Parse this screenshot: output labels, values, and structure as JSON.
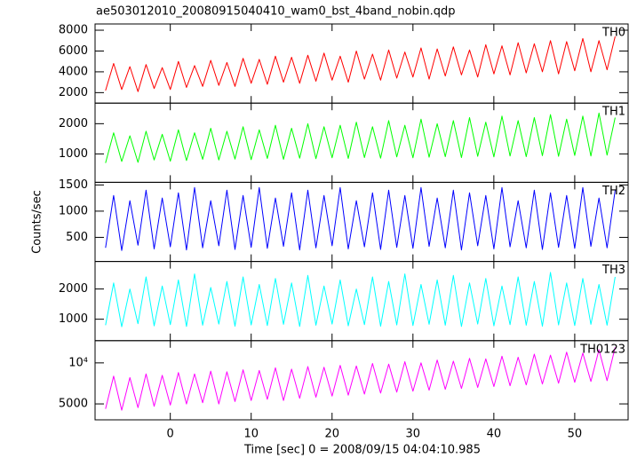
{
  "chart_data": {
    "type": "line",
    "title": "ae503012010_20080915040410_wam0_bst_4band_nobin.qdp",
    "xlabel": "Time [sec] 0 = 2008/09/15 04:04:10.985",
    "ylabel": "Counts/sec",
    "xlim": [
      -9.3,
      56.6
    ],
    "xticks": [
      0,
      10,
      20,
      30,
      40,
      50
    ],
    "x": [
      -8,
      -7,
      -6,
      -5,
      -4,
      -3,
      -2,
      -1,
      0,
      1,
      2,
      3,
      4,
      5,
      6,
      7,
      8,
      9,
      10,
      11,
      12,
      13,
      14,
      15,
      16,
      17,
      18,
      19,
      20,
      21,
      22,
      23,
      24,
      25,
      26,
      27,
      28,
      29,
      30,
      31,
      32,
      33,
      34,
      35,
      36,
      37,
      38,
      39,
      40,
      41,
      42,
      43,
      44,
      45,
      46,
      47,
      48,
      49,
      50,
      51,
      52,
      53,
      54,
      55
    ],
    "series": [
      {
        "name": "TH0",
        "color": "#ff0000",
        "ylim": [
          990,
          8600
        ],
        "yticks": [
          2000,
          4000,
          6000,
          8000
        ],
        "log": false,
        "values": [
          2200,
          4800,
          2300,
          4500,
          2100,
          4700,
          2400,
          4400,
          2300,
          5000,
          2500,
          4600,
          2600,
          5100,
          2700,
          4900,
          2600,
          5300,
          2900,
          5200,
          2800,
          5500,
          3000,
          5400,
          2900,
          5600,
          3100,
          5800,
          3200,
          5500,
          3000,
          6000,
          3300,
          5700,
          3200,
          6100,
          3400,
          5900,
          3500,
          6300,
          3300,
          6200,
          3600,
          6400,
          3700,
          6100,
          3500,
          6600,
          3800,
          6500,
          3700,
          6800,
          3900,
          6700,
          4000,
          7000,
          3800,
          6900,
          4100,
          7200,
          4000,
          7000,
          4200,
          7400
        ]
      },
      {
        "name": "TH1",
        "color": "#00ff00",
        "ylim": [
          60,
          2680
        ],
        "yticks": [
          1000,
          2000
        ],
        "log": false,
        "values": [
          700,
          1700,
          750,
          1600,
          720,
          1750,
          800,
          1650,
          760,
          1800,
          780,
          1700,
          820,
          1850,
          800,
          1750,
          830,
          1900,
          810,
          1800,
          850,
          1950,
          820,
          1850,
          860,
          2000,
          840,
          1900,
          870,
          1950,
          850,
          2050,
          880,
          1900,
          860,
          2100,
          900,
          1950,
          870,
          2150,
          890,
          2000,
          910,
          2100,
          880,
          2200,
          920,
          2050,
          900,
          2250,
          930,
          2100,
          910,
          2200,
          940,
          2300,
          920,
          2150,
          950,
          2250,
          930,
          2350,
          960,
          2200
        ]
      },
      {
        "name": "TH2",
        "color": "#0000ff",
        "ylim": [
          40,
          1550
        ],
        "yticks": [
          500,
          1000,
          1500
        ],
        "log": false,
        "values": [
          300,
          1300,
          250,
          1200,
          350,
          1400,
          280,
          1250,
          320,
          1350,
          260,
          1450,
          300,
          1200,
          340,
          1400,
          270,
          1300,
          310,
          1450,
          290,
          1250,
          330,
          1350,
          260,
          1400,
          300,
          1300,
          340,
          1450,
          280,
          1200,
          320,
          1350,
          270,
          1400,
          310,
          1300,
          290,
          1450,
          330,
          1250,
          300,
          1400,
          260,
          1350,
          340,
          1300,
          280,
          1450,
          320,
          1200,
          300,
          1400,
          270,
          1350,
          310,
          1300,
          290,
          1450,
          330,
          1250,
          300,
          1400
        ]
      },
      {
        "name": "TH3",
        "color": "#00ffff",
        "ylim": [
          290,
          2910
        ],
        "yticks": [
          1000,
          2000
        ],
        "log": false,
        "values": [
          800,
          2200,
          750,
          2000,
          850,
          2400,
          780,
          2100,
          820,
          2300,
          760,
          2500,
          800,
          2050,
          840,
          2250,
          770,
          2400,
          810,
          2150,
          790,
          2350,
          830,
          2200,
          760,
          2450,
          800,
          2100,
          840,
          2300,
          780,
          2000,
          820,
          2400,
          770,
          2250,
          810,
          2500,
          790,
          2150,
          830,
          2300,
          800,
          2450,
          760,
          2200,
          840,
          2350,
          780,
          2100,
          820,
          2400,
          800,
          2250,
          770,
          2550,
          810,
          2200,
          790,
          2350,
          830,
          2150,
          800,
          2400
        ]
      },
      {
        "name": "TH0123",
        "color": "#ff00ff",
        "ylim": [
          3820,
          14560
        ],
        "yticks": [
          5000,
          {
            "value": 10000,
            "label": "10⁴"
          }
        ],
        "log": true,
        "values": [
          4600,
          8000,
          4500,
          7800,
          4700,
          8300,
          4800,
          8100,
          4900,
          8500,
          5000,
          8300,
          5100,
          8700,
          5000,
          8600,
          5200,
          8900,
          5300,
          8800,
          5400,
          9200,
          5300,
          9000,
          5500,
          9400,
          5600,
          9300,
          5700,
          9600,
          5800,
          9500,
          5900,
          9900,
          6000,
          9800,
          6100,
          10200,
          6200,
          10000,
          6300,
          10500,
          6400,
          10300,
          6500,
          10800,
          6600,
          10700,
          6700,
          11200,
          6800,
          11000,
          6900,
          11600,
          7000,
          11400,
          7100,
          12000,
          7200,
          11800,
          7300,
          12500,
          7400,
          13000
        ]
      }
    ]
  }
}
